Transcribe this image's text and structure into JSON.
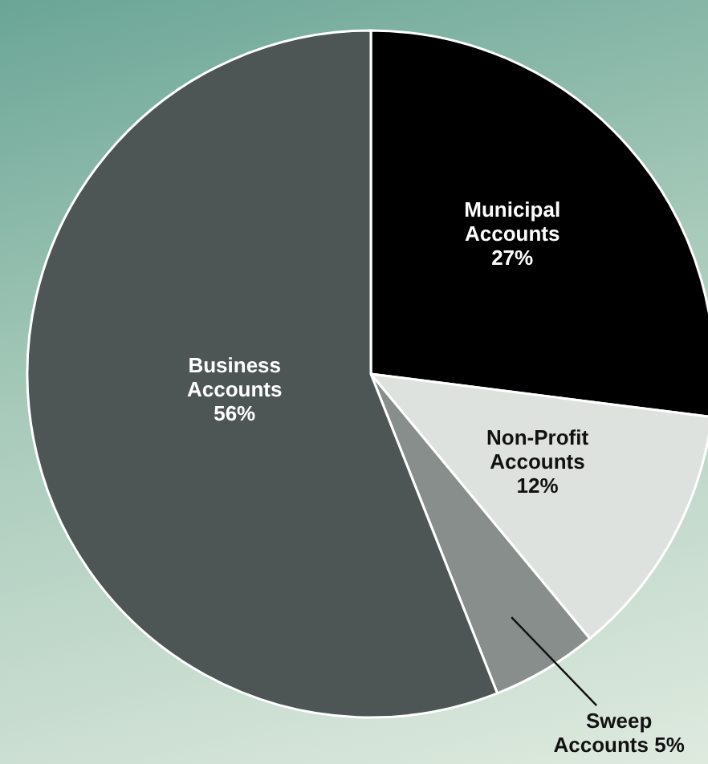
{
  "chart_data": {
    "type": "pie",
    "categories": [
      "Municipal Accounts",
      "Non-Profit Accounts",
      "Sweep Accounts",
      "Business Accounts"
    ],
    "values": [
      27,
      12,
      5,
      56
    ],
    "value_labels": [
      "27%",
      "12%",
      "5%",
      "56%"
    ],
    "colors": [
      "#000000",
      "#dde2df",
      "#878e8c",
      "#4d5654"
    ]
  }
}
